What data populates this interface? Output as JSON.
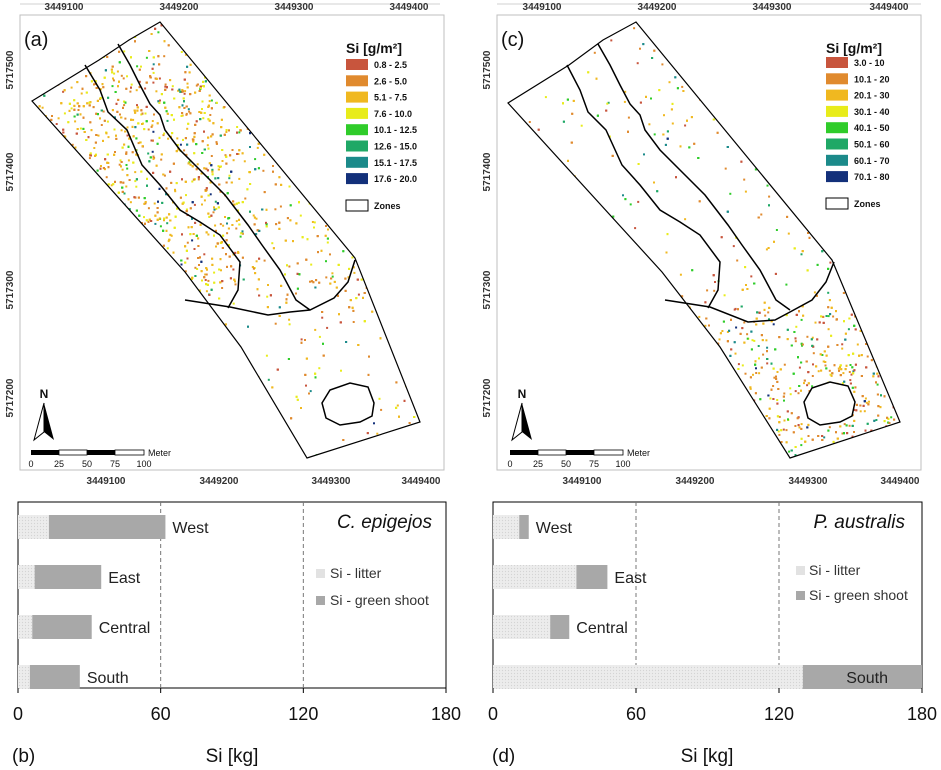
{
  "panels": {
    "a": {
      "label": "(a)"
    },
    "b": {
      "label": "(b)"
    },
    "c": {
      "label": "(c)"
    },
    "d": {
      "label": "(d)"
    }
  },
  "map_common": {
    "x_ticks": [
      "3449100",
      "3449200",
      "3449300",
      "3449400"
    ],
    "y_ticks": [
      "5717500",
      "5717400",
      "5717300",
      "5717200"
    ],
    "north_label": "N",
    "scale_labels": [
      "0",
      "25",
      "50",
      "75",
      "100"
    ],
    "scale_unit": "Meter",
    "zones_label": "Zones"
  },
  "map_a": {
    "legend_title": "Si [g/m²]",
    "legend_items": [
      {
        "label": "0.8 - 2.5",
        "color": "#c8553d"
      },
      {
        "label": "2.6 - 5.0",
        "color": "#e08a2e"
      },
      {
        "label": "5.1 - 7.5",
        "color": "#f0b820"
      },
      {
        "label": "7.6 - 10.0",
        "color": "#e8ec1a"
      },
      {
        "label": "10.1 - 12.5",
        "color": "#2fcc2a"
      },
      {
        "label": "12.6 - 15.0",
        "color": "#1fa866"
      },
      {
        "label": "15.1 - 17.5",
        "color": "#1b8a8a"
      },
      {
        "label": "17.6 - 20.0",
        "color": "#13307a"
      }
    ]
  },
  "map_c": {
    "legend_title": "Si [g/m²]",
    "legend_items": [
      {
        "label": "3.0 - 10",
        "color": "#c8553d"
      },
      {
        "label": "10.1 - 20",
        "color": "#e08a2e"
      },
      {
        "label": "20.1 - 30",
        "color": "#f0b820"
      },
      {
        "label": "30.1 - 40",
        "color": "#e8ec1a"
      },
      {
        "label": "40.1 - 50",
        "color": "#2fcc2a"
      },
      {
        "label": "50.1 - 60",
        "color": "#1fa866"
      },
      {
        "label": "60.1 - 70",
        "color": "#1b8a8a"
      },
      {
        "label": "70.1 - 80",
        "color": "#13307a"
      }
    ]
  },
  "chart_data": [
    {
      "type": "bar",
      "orientation": "horizontal",
      "stacked": true,
      "title": "C. epigejos",
      "xlabel": "Si [kg]",
      "ylabel": "",
      "xlim": [
        0,
        180
      ],
      "x_ticks": [
        "0",
        "60",
        "120",
        "180"
      ],
      "categories": [
        "West",
        "East",
        "Central",
        "South"
      ],
      "series": [
        {
          "name": "Si - litter",
          "color": "#e2e2e2",
          "values": [
            13,
            7,
            6,
            5
          ]
        },
        {
          "name": "Si - green shoot",
          "color": "#a8a8a8",
          "values": [
            49,
            28,
            25,
            21
          ]
        }
      ],
      "legend_position": "right",
      "grid": "vertical dashed at 60 and 120"
    },
    {
      "type": "bar",
      "orientation": "horizontal",
      "stacked": true,
      "title": "P. australis",
      "xlabel": "Si [kg]",
      "ylabel": "",
      "xlim": [
        0,
        180
      ],
      "x_ticks": [
        "0",
        "60",
        "120",
        "180"
      ],
      "categories": [
        "West",
        "East",
        "Central",
        "South"
      ],
      "series": [
        {
          "name": "Si - litter",
          "color": "#e2e2e2",
          "values": [
            11,
            35,
            24,
            130
          ]
        },
        {
          "name": "Si - green shoot",
          "color": "#a8a8a8",
          "values": [
            4,
            13,
            8,
            50
          ]
        }
      ],
      "legend_position": "right",
      "grid": "vertical dashed at 60 and 120"
    }
  ]
}
